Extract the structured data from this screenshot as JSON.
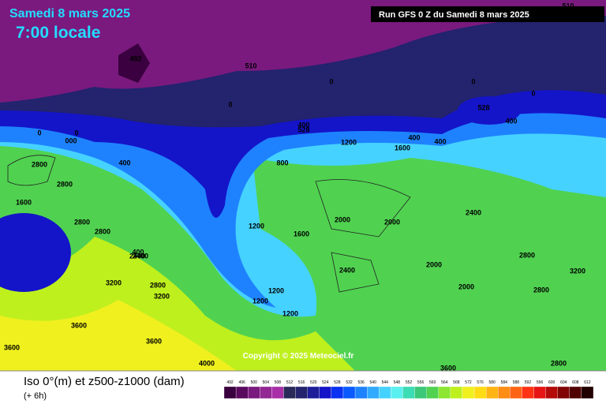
{
  "header": {
    "date": "Samedi 8 mars 2025",
    "time": "7:00 locale",
    "run": "Run GFS 0 Z du Samedi 8 mars 2025"
  },
  "map": {
    "copyright": "Copyright © 2025 Meteociel.fr",
    "contour_labels": [
      "510",
      "492",
      "510",
      "0",
      "0",
      "0",
      "0",
      "0",
      "0",
      "000",
      "528",
      "400",
      "400",
      "1200",
      "1600",
      "400",
      "400",
      "528",
      "400",
      "800",
      "2800",
      "2800",
      "1600",
      "2800",
      "1200",
      "2000",
      "2000",
      "2400",
      "1600",
      "2000",
      "2400",
      "2800",
      "2000",
      "1200",
      "1200",
      "2800",
      "3200",
      "3600",
      "2400",
      "2800",
      "3200",
      "2400",
      "2800",
      "3600",
      "4000",
      "3600",
      "2800",
      "3200",
      "1200",
      "400",
      "3600"
    ]
  },
  "legend": {
    "title": "Iso 0°(m) et z500-z1000 (dam)",
    "step": "(+ 6h)",
    "values": [
      492,
      496,
      500,
      504,
      508,
      512,
      516,
      520,
      524,
      528,
      532,
      536,
      540,
      544,
      548,
      552,
      556,
      560,
      564,
      568,
      572,
      576,
      580,
      584,
      588,
      592,
      596,
      600,
      604,
      608,
      612
    ],
    "colors": [
      "#3a003f",
      "#5a0a5e",
      "#7a1a7e",
      "#932793",
      "#a82fa8",
      "#2a2a5a",
      "#23236e",
      "#1e1e9a",
      "#1414c8",
      "#0a32f0",
      "#0a5aff",
      "#1e82ff",
      "#32aaff",
      "#46d2ff",
      "#5af0f0",
      "#3cdcb4",
      "#3cc878",
      "#50d250",
      "#8ce632",
      "#bef01e",
      "#f0f01e",
      "#ffdc14",
      "#ffb414",
      "#ff8c14",
      "#ff6414",
      "#ff3214",
      "#e61414",
      "#b40a0a",
      "#820505",
      "#500000",
      "#200000"
    ]
  }
}
